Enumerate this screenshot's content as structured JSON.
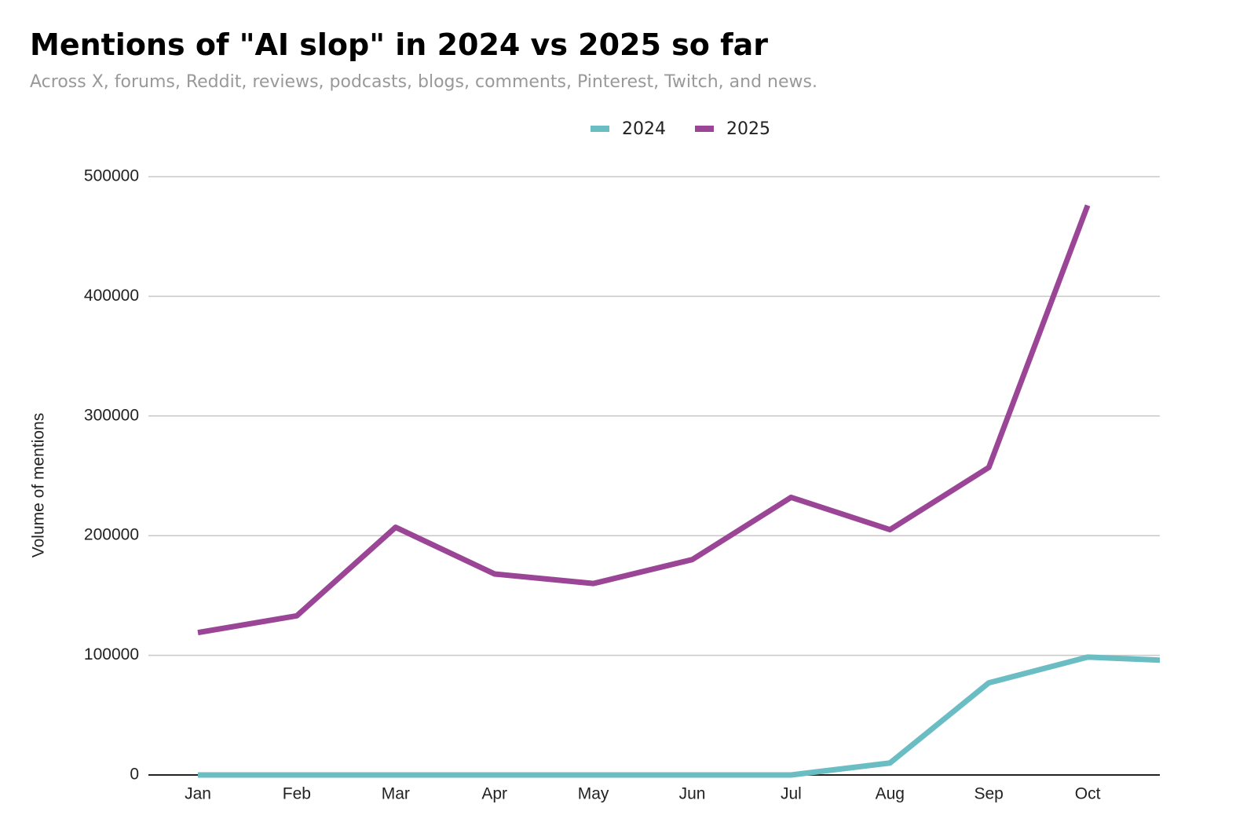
{
  "chart_data": {
    "type": "line",
    "title": "Mentions of \"AI slop\" in 2024 vs 2025 so far",
    "subtitle": "Across X, forums, Reddit, reviews, podcasts, blogs, comments, Pinterest, Twitch, and news.",
    "y_label": "Volume of mentions",
    "categories": [
      "Jan",
      "Feb",
      "Mar",
      "Apr",
      "May",
      "Jun",
      "Jul",
      "Aug",
      "Sep",
      "Oct",
      null
    ],
    "series": [
      {
        "name": "2024",
        "color": "#6bbdc4",
        "values": [
          0,
          0,
          0,
          0,
          0,
          0,
          0,
          10000,
          77000,
          98500,
          95000
        ]
      },
      {
        "name": "2025",
        "color": "#9b4596",
        "values": [
          119000,
          133000,
          207000,
          168000,
          160000,
          180000,
          232000,
          205000,
          257000,
          476000,
          null
        ]
      }
    ],
    "ylim": [
      0,
      500000
    ],
    "yticks": [
      0,
      100000,
      200000,
      300000,
      400000,
      500000
    ],
    "grid": true,
    "legend": "top"
  }
}
